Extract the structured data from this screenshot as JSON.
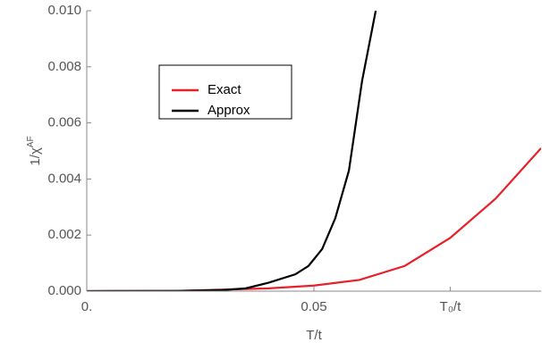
{
  "chart_data": {
    "type": "line",
    "x_label": "T/t",
    "y_label": "1/χ",
    "y_label_sup": "AF",
    "xlim": [
      0,
      0.1
    ],
    "ylim": [
      0,
      0.01
    ],
    "xticks": [
      {
        "value": 0,
        "label": "0."
      },
      0.05,
      {
        "value": 0.08,
        "label": "T₀/t"
      }
    ],
    "yticks": [
      {
        "value": 0,
        "label": "0.000"
      },
      {
        "value": 0.002,
        "label": "0.002"
      },
      {
        "value": 0.004,
        "label": "0.004"
      },
      {
        "value": 0.006,
        "label": "0.006"
      },
      {
        "value": 0.008,
        "label": "0.008"
      },
      {
        "value": 0.01,
        "label": "0.010"
      }
    ],
    "series": [
      {
        "name": "Exact",
        "color": "#e8202a",
        "x": [
          0,
          0.02,
          0.04,
          0.05,
          0.06,
          0.07,
          0.08,
          0.09,
          0.1
        ],
        "values": [
          0,
          1e-05,
          0.0001,
          0.0002,
          0.0004,
          0.0009,
          0.0019,
          0.0033,
          0.0051
        ]
      },
      {
        "name": "Approx",
        "color": "#000000",
        "x": [
          0,
          0.02,
          0.03,
          0.035,
          0.04,
          0.0459,
          0.0488,
          0.0518,
          0.0547,
          0.0577,
          0.0606,
          0.0636
        ],
        "values": [
          0,
          1e-05,
          4e-05,
          0.0001,
          0.0003,
          0.0006,
          0.0009,
          0.0015,
          0.0026,
          0.0043,
          0.0075,
          0.01
        ]
      }
    ]
  }
}
